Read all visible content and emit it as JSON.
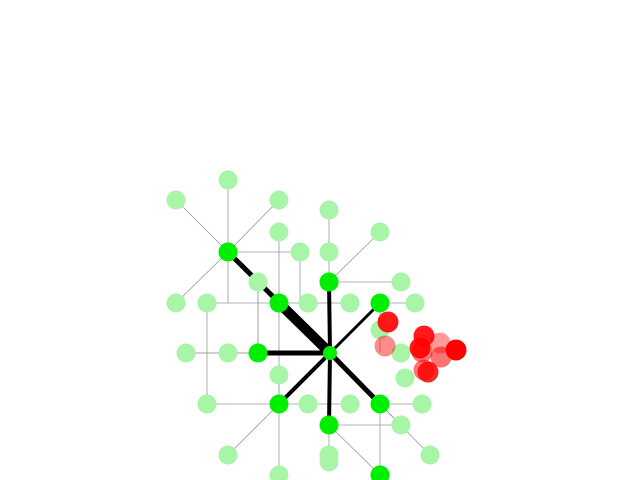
{
  "scene": {
    "description_hidden": "",
    "colors": {
      "background": "#ffffff",
      "node_active": "#00ee00",
      "node_faded": "#a8f5a8",
      "edge_thin": "#9a9a9a",
      "edge_thick": "#000000",
      "enemy_solid": "#ff0000",
      "enemy_faded": "#ff9a9a"
    }
  }
}
